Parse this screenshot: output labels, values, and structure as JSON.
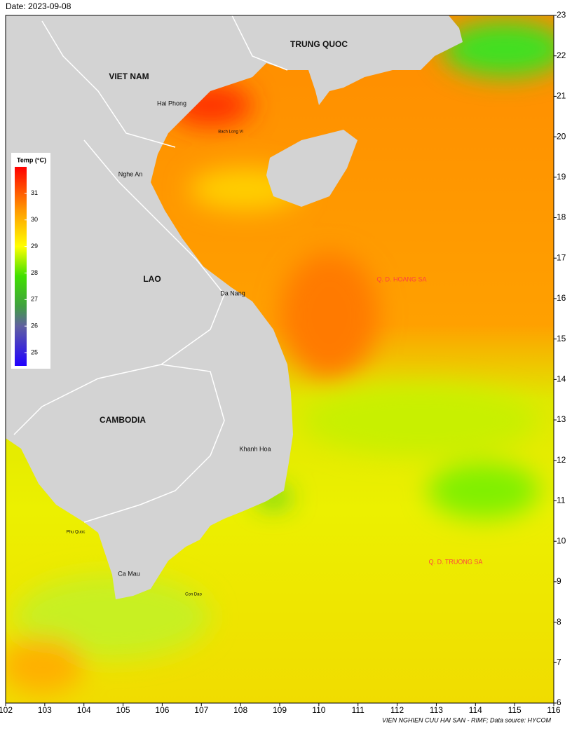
{
  "date_label": "Date: 2023-09-08",
  "map": {
    "xlim": [
      102,
      116
    ],
    "ylim": [
      6,
      23
    ],
    "xticks": [
      102,
      103,
      104,
      105,
      106,
      107,
      108,
      109,
      110,
      111,
      112,
      113,
      114,
      115,
      116
    ],
    "yticks": [
      6,
      7,
      8,
      9,
      10,
      11,
      12,
      13,
      14,
      15,
      16,
      17,
      18,
      19,
      20,
      21,
      22,
      23
    ]
  },
  "places": [
    "TRUNG QUOC",
    "VIET NAM",
    "Hai Phong",
    "Bach Long Vi",
    "Nghe An",
    "LAO",
    "Da Nang",
    "CAMBODIA",
    "Khanh Hoa",
    "Phu Quoc",
    "Ca Mau",
    "Con Dao",
    "Q. D. HOANG SA",
    "Q. D. TRUONG SA"
  ],
  "colorbar": {
    "title": "Temp (°C)",
    "lim": [
      24.5,
      32
    ],
    "ticks": [
      25,
      26,
      27,
      28,
      29,
      30,
      31
    ]
  },
  "credit": "VIEN NGHIEN CUU HAI SAN - RIMF; Data source: HYCOM"
}
